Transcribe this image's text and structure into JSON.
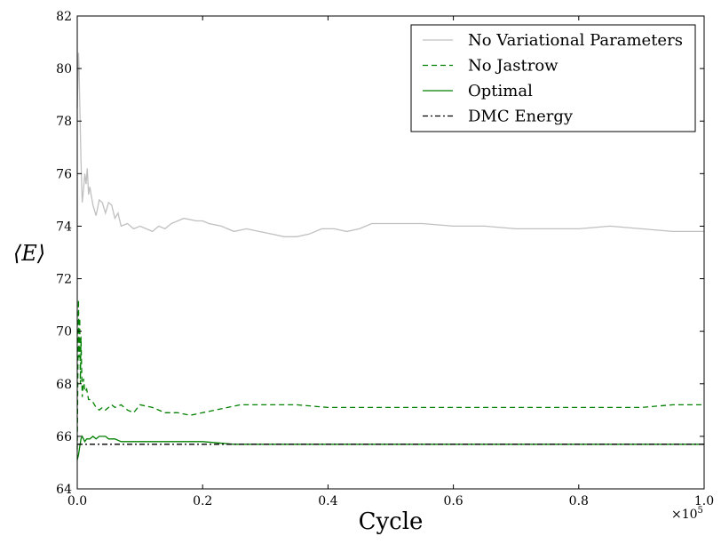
{
  "chart_data": {
    "type": "line",
    "title": "",
    "xlabel": "Cycle",
    "ylabel": "⟨E⟩",
    "x_multiplier": "×10",
    "x_multiplier_exp": "5",
    "xlim": [
      0.0,
      1.0
    ],
    "ylim": [
      64,
      82
    ],
    "xticks": [
      0.0,
      0.2,
      0.4,
      0.6,
      0.8,
      1.0
    ],
    "xtick_labels": [
      "0.0",
      "0.2",
      "0.4",
      "0.6",
      "0.8",
      "1.0"
    ],
    "yticks": [
      64,
      66,
      68,
      70,
      72,
      74,
      76,
      78,
      80,
      82
    ],
    "ytick_labels": [
      "64",
      "66",
      "68",
      "70",
      "72",
      "74",
      "76",
      "78",
      "80",
      "82"
    ],
    "grid": false,
    "legend_position": "top-right",
    "series": [
      {
        "name": "No Variational Parameters",
        "color": "#c0c0c0",
        "dash": "solid",
        "x": [
          0.0,
          0.002,
          0.003,
          0.004,
          0.006,
          0.008,
          0.01,
          0.012,
          0.014,
          0.016,
          0.018,
          0.02,
          0.025,
          0.03,
          0.035,
          0.04,
          0.045,
          0.05,
          0.055,
          0.06,
          0.065,
          0.07,
          0.08,
          0.09,
          0.1,
          0.11,
          0.12,
          0.13,
          0.14,
          0.15,
          0.17,
          0.19,
          0.2,
          0.21,
          0.23,
          0.25,
          0.27,
          0.29,
          0.31,
          0.33,
          0.35,
          0.37,
          0.39,
          0.41,
          0.43,
          0.45,
          0.47,
          0.5,
          0.55,
          0.6,
          0.65,
          0.7,
          0.75,
          0.8,
          0.85,
          0.9,
          0.95,
          1.0
        ],
        "y": [
          78.5,
          80.6,
          80.0,
          78.7,
          76.5,
          74.9,
          75.4,
          76.0,
          75.6,
          76.2,
          75.2,
          75.5,
          74.8,
          74.4,
          75.0,
          74.9,
          74.5,
          74.9,
          74.8,
          74.3,
          74.5,
          74.0,
          74.1,
          73.9,
          74.0,
          73.9,
          73.8,
          74.0,
          73.9,
          74.1,
          74.3,
          74.2,
          74.2,
          74.1,
          74.0,
          73.8,
          73.9,
          73.8,
          73.7,
          73.6,
          73.6,
          73.7,
          73.9,
          73.9,
          73.8,
          73.9,
          74.1,
          74.1,
          74.1,
          74.0,
          74.0,
          73.9,
          73.9,
          73.9,
          74.0,
          73.9,
          73.8,
          73.8
        ]
      },
      {
        "name": "No Jastrow",
        "color": "#008000",
        "dash": "dashed",
        "x": [
          0.0,
          0.002,
          0.003,
          0.004,
          0.005,
          0.006,
          0.008,
          0.01,
          0.012,
          0.015,
          0.018,
          0.02,
          0.025,
          0.03,
          0.035,
          0.04,
          0.045,
          0.05,
          0.055,
          0.06,
          0.07,
          0.08,
          0.09,
          0.1,
          0.12,
          0.14,
          0.16,
          0.18,
          0.2,
          0.22,
          0.24,
          0.26,
          0.3,
          0.35,
          0.4,
          0.45,
          0.5,
          0.55,
          0.6,
          0.65,
          0.7,
          0.75,
          0.8,
          0.85,
          0.9,
          0.95,
          1.0
        ],
        "y": [
          65.5,
          71.2,
          69.0,
          70.5,
          68.0,
          69.8,
          67.5,
          68.2,
          67.7,
          67.8,
          67.4,
          67.4,
          67.3,
          67.1,
          67.0,
          67.1,
          67.0,
          67.1,
          67.2,
          67.1,
          67.2,
          67.0,
          66.9,
          67.2,
          67.1,
          66.9,
          66.9,
          66.8,
          66.9,
          67.0,
          67.1,
          67.2,
          67.2,
          67.2,
          67.1,
          67.1,
          67.1,
          67.1,
          67.1,
          67.1,
          67.1,
          67.1,
          67.1,
          67.1,
          67.1,
          67.2,
          67.2
        ]
      },
      {
        "name": "Optimal",
        "color": "#008000",
        "dash": "solid",
        "x": [
          0.0,
          0.002,
          0.004,
          0.006,
          0.008,
          0.01,
          0.012,
          0.015,
          0.02,
          0.025,
          0.03,
          0.035,
          0.04,
          0.045,
          0.05,
          0.06,
          0.07,
          0.08,
          0.09,
          0.1,
          0.12,
          0.15,
          0.2,
          0.25,
          0.3,
          0.4,
          0.5,
          0.6,
          0.7,
          0.8,
          0.9,
          1.0
        ],
        "y": [
          65.1,
          65.3,
          65.6,
          65.9,
          66.0,
          65.9,
          65.8,
          65.9,
          65.9,
          66.0,
          65.9,
          66.0,
          66.0,
          66.0,
          65.9,
          65.9,
          65.8,
          65.8,
          65.8,
          65.8,
          65.8,
          65.8,
          65.8,
          65.7,
          65.7,
          65.7,
          65.7,
          65.7,
          65.7,
          65.7,
          65.7,
          65.7
        ]
      },
      {
        "name": "DMC Energy",
        "color": "#000000",
        "dash": "dashdot",
        "x": [
          0.0,
          1.0
        ],
        "y": [
          65.7,
          65.7
        ]
      }
    ]
  }
}
